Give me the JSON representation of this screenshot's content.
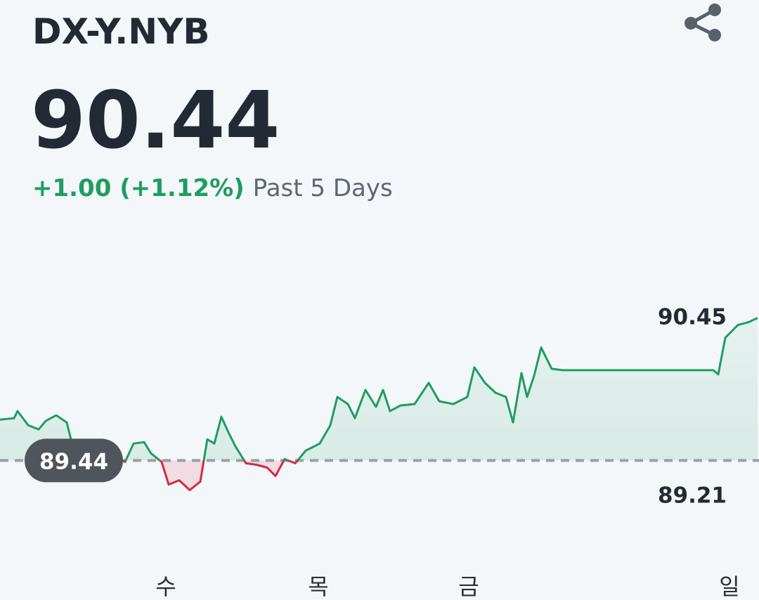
{
  "chart_data": {
    "type": "line",
    "title": "DX-Y.NYB",
    "price": 90.44,
    "change": "+1.00 (+1.12%)",
    "period": "Past 5 Days",
    "baseline": 89.44,
    "high": 90.45,
    "low": 89.21,
    "up_color": "#1f9d5f",
    "down_color": "#d42a40",
    "x": [
      0,
      2,
      2.5,
      4,
      5.5,
      6.5,
      8,
      9.5,
      10.5,
      12,
      14,
      16,
      17.8,
      19,
      20.5,
      21.5,
      23,
      24,
      25.5,
      27,
      28.5,
      29.5,
      30.5,
      31.5,
      32.5,
      33.5,
      35,
      36.5,
      38,
      39.2,
      40.5,
      42,
      43.5,
      45.5,
      47,
      48,
      49.5,
      50.5,
      52,
      53.5,
      54.5,
      55.5,
      57,
      59,
      61,
      62.5,
      64.5,
      66.5,
      67.5,
      69,
      70.5,
      72,
      73,
      74.2,
      75,
      76,
      77,
      78.5,
      80,
      101.5,
      102.2,
      103.2,
      105,
      106.5,
      107.8
    ],
    "values": [
      89.73,
      89.74,
      89.79,
      89.69,
      89.66,
      89.72,
      89.76,
      89.71,
      89.51,
      89.49,
      89.51,
      89.47,
      89.43,
      89.56,
      89.57,
      89.49,
      89.43,
      89.27,
      89.3,
      89.23,
      89.29,
      89.59,
      89.56,
      89.75,
      89.64,
      89.54,
      89.42,
      89.41,
      89.39,
      89.33,
      89.45,
      89.42,
      89.51,
      89.56,
      89.69,
      89.89,
      89.84,
      89.74,
      89.94,
      89.82,
      89.94,
      89.79,
      89.83,
      89.84,
      89.99,
      89.86,
      89.84,
      89.89,
      90.1,
      89.99,
      89.92,
      89.89,
      89.71,
      90.06,
      89.89,
      90.04,
      90.24,
      90.09,
      90.08,
      90.08,
      90.05,
      90.31,
      90.4,
      90.42,
      90.45
    ],
    "xlim": [
      0,
      108
    ],
    "ylim": [
      88.8,
      91.05
    ],
    "xticks": [
      {
        "value": 23.6,
        "label": "수"
      },
      {
        "value": 45.3,
        "label": "목"
      },
      {
        "value": 66.7,
        "label": "금"
      },
      {
        "value": 103.8,
        "label": "일"
      }
    ]
  }
}
